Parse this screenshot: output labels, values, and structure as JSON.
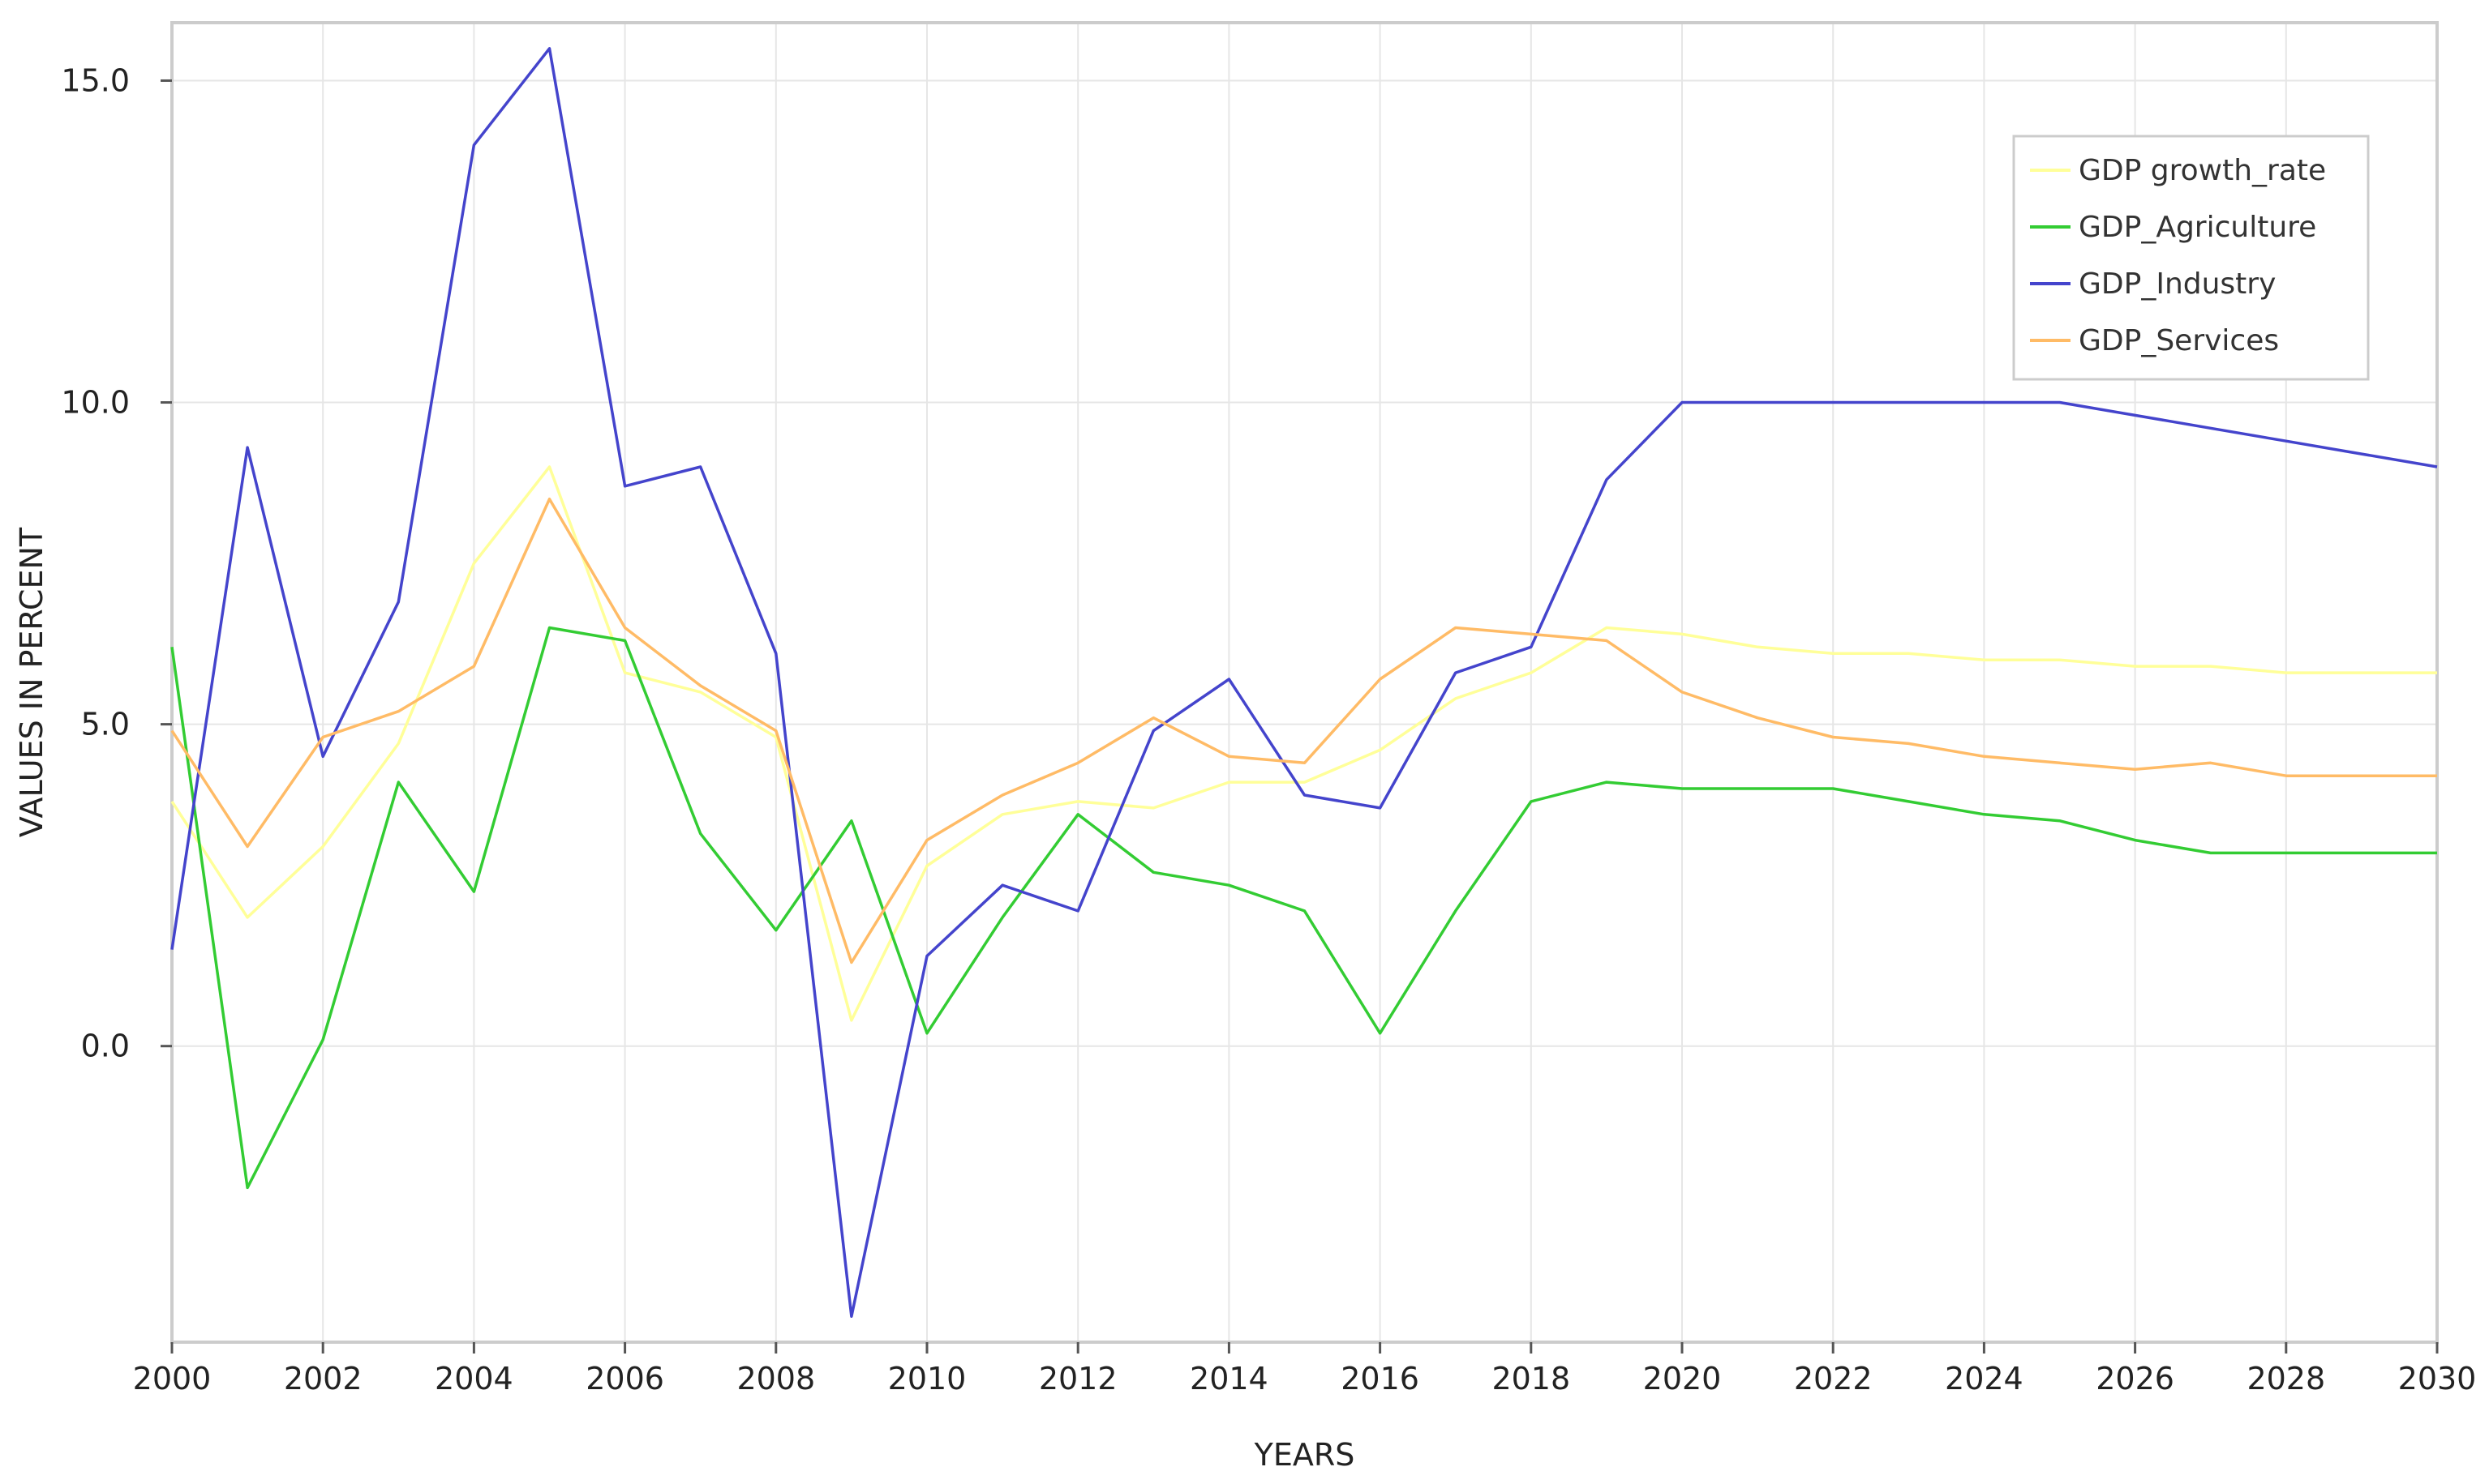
{
  "chart_data": {
    "type": "line",
    "xlabel": "YEARS",
    "ylabel": "VALUES IN PERCENT",
    "xlim": [
      2000,
      2030
    ],
    "ylim": [
      -4.6,
      15.9
    ],
    "x_ticks": [
      "2000",
      "2002",
      "2004",
      "2006",
      "2008",
      "2010",
      "2012",
      "2014",
      "2016",
      "2018",
      "2020",
      "2022",
      "2024",
      "2026",
      "2028",
      "2030"
    ],
    "y_ticks": [
      "0.0",
      "5.0",
      "10.0",
      "15.0"
    ],
    "y_tick_values": [
      0,
      5,
      10,
      15
    ],
    "grid": true,
    "legend_position": "top-right",
    "x": [
      2000,
      2001,
      2002,
      2003,
      2004,
      2005,
      2006,
      2007,
      2008,
      2009,
      2010,
      2011,
      2012,
      2013,
      2014,
      2015,
      2016,
      2017,
      2018,
      2019,
      2020,
      2021,
      2022,
      2023,
      2024,
      2025,
      2026,
      2027,
      2028,
      2029,
      2030
    ],
    "series": [
      {
        "name": "GDP growth_rate",
        "color": "#ffff99",
        "values": [
          3.8,
          2.0,
          3.1,
          4.7,
          7.5,
          9.0,
          5.8,
          5.5,
          4.8,
          0.4,
          2.8,
          3.6,
          3.8,
          3.7,
          4.1,
          4.1,
          4.6,
          5.4,
          5.8,
          6.5,
          6.4,
          6.2,
          6.1,
          6.1,
          6.0,
          6.0,
          5.9,
          5.9,
          5.8,
          5.8,
          5.8
        ]
      },
      {
        "name": "GDP_Agriculture",
        "color": "#33cc33",
        "values": [
          6.2,
          -2.2,
          0.1,
          4.1,
          2.4,
          6.5,
          6.3,
          3.3,
          1.8,
          3.5,
          0.2,
          2.0,
          3.6,
          2.7,
          2.5,
          2.1,
          0.2,
          2.1,
          3.8,
          4.1,
          4.0,
          4.0,
          4.0,
          3.8,
          3.6,
          3.5,
          3.2,
          3.0,
          3.0,
          3.0,
          3.0
        ]
      },
      {
        "name": "GDP_Industry",
        "color": "#4444cc",
        "values": [
          1.5,
          9.3,
          4.5,
          6.9,
          14.0,
          15.5,
          8.7,
          9.0,
          6.1,
          -4.2,
          1.4,
          2.5,
          2.1,
          4.9,
          5.7,
          3.9,
          3.7,
          5.8,
          6.2,
          8.8,
          10.0,
          10.0,
          10.0,
          10.0,
          10.0,
          10.0,
          9.8,
          9.6,
          9.4,
          9.2,
          9.0
        ]
      },
      {
        "name": "GDP_Services",
        "color": "#ffbb66",
        "values": [
          4.9,
          3.1,
          4.8,
          5.2,
          5.9,
          8.5,
          6.5,
          5.6,
          4.9,
          1.3,
          3.2,
          3.9,
          4.4,
          5.1,
          4.5,
          4.4,
          5.7,
          6.5,
          6.4,
          6.3,
          5.5,
          5.1,
          4.8,
          4.7,
          4.5,
          4.4,
          4.3,
          4.4,
          4.2,
          4.2,
          4.2
        ]
      }
    ]
  }
}
